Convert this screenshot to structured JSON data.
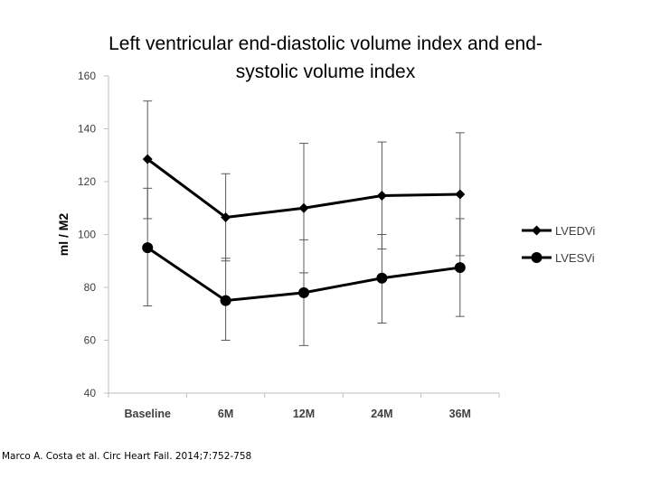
{
  "title": {
    "line1": "Left ventricular end-diastolic volume index and end-",
    "line2": "systolic volume index"
  },
  "citation": "Marco A. Costa et al. Circ Heart Fail. 2014;7:752-758",
  "chart_data": {
    "type": "line",
    "title": "Left ventricular end-diastolic volume index and end-systolic volume index",
    "xlabel": "",
    "ylabel": "ml / M2",
    "ylim": [
      40,
      160
    ],
    "yticks": [
      40,
      60,
      80,
      100,
      120,
      140,
      160
    ],
    "categories": [
      "Baseline",
      "6M",
      "12M",
      "24M",
      "36M"
    ],
    "legend_position": "right",
    "series": [
      {
        "name": "LVEDVi",
        "marker": "diamond",
        "values": [
          128.5,
          106.5,
          110,
          114.7,
          115.2
        ],
        "err_low": [
          106,
          90,
          85.5,
          94.5,
          92
        ],
        "err_high": [
          150.5,
          123,
          134.5,
          135,
          138.5
        ]
      },
      {
        "name": "LVESVi",
        "marker": "circle",
        "values": [
          95,
          75,
          78,
          83.5,
          87.5
        ],
        "err_low": [
          73,
          60,
          58,
          66.5,
          69
        ],
        "err_high": [
          117.5,
          91,
          98,
          100,
          106
        ]
      }
    ],
    "colors": {
      "line": "#000000",
      "axis": "#bfbfbf",
      "text": "#404040"
    }
  }
}
